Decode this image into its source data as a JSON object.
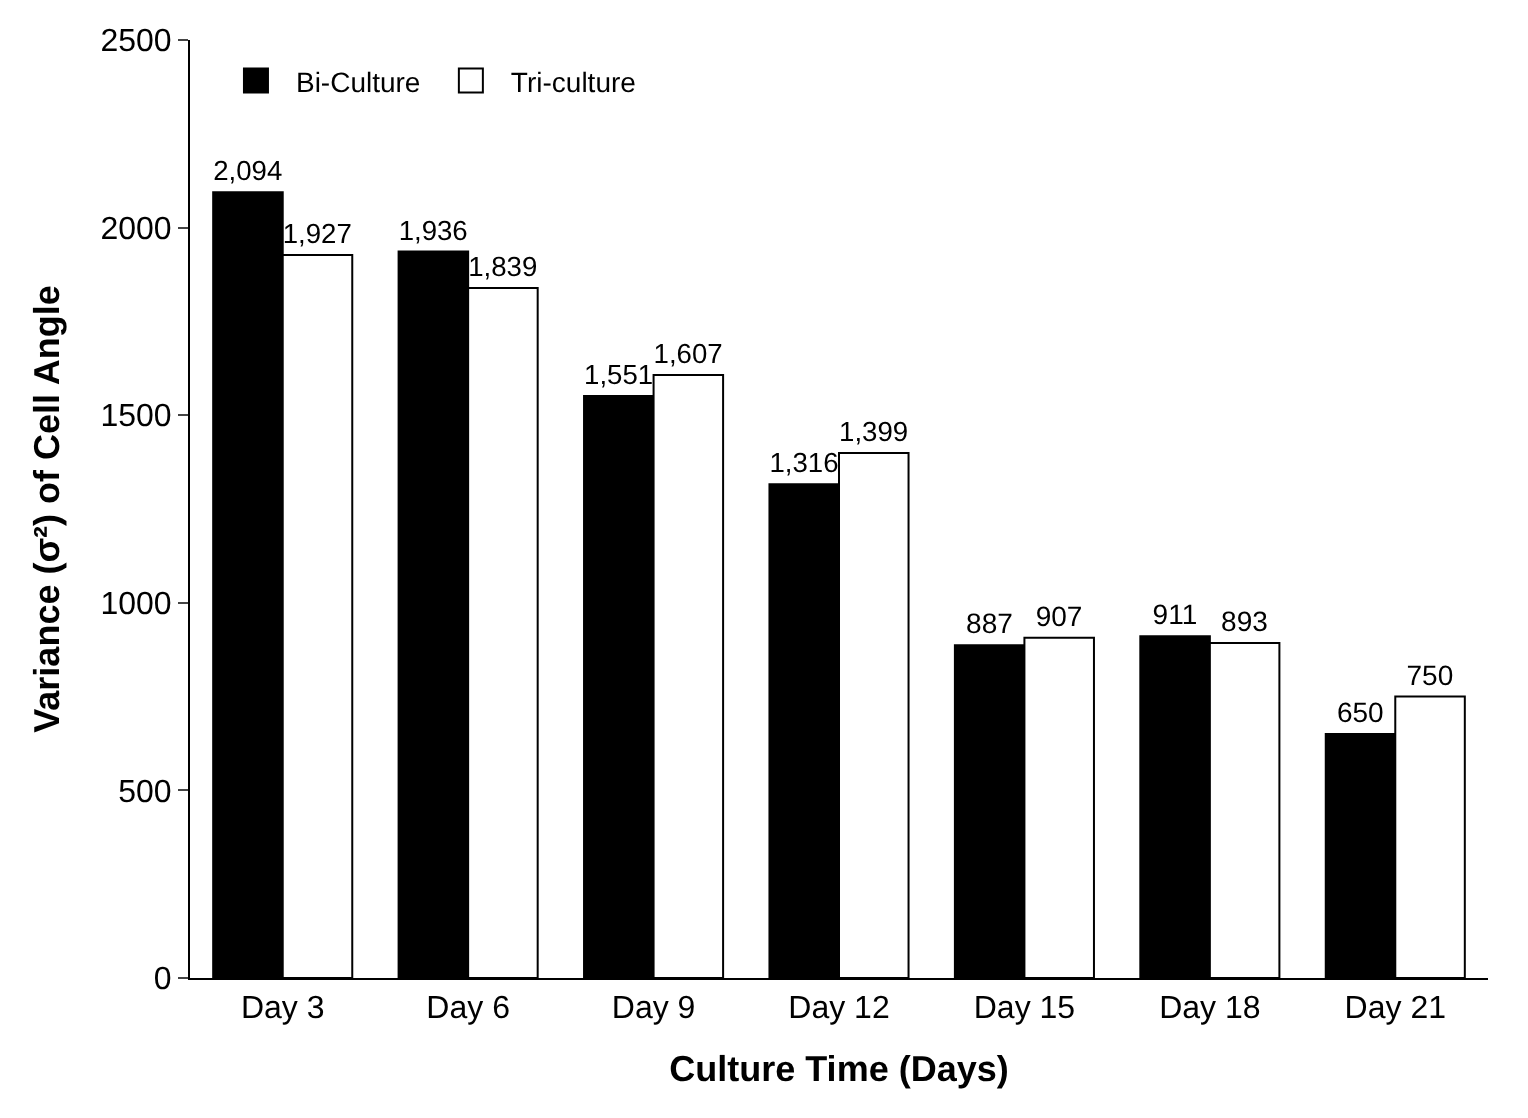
{
  "chart_data": {
    "type": "bar",
    "xlabel": "Culture Time (Days)",
    "ylabel": "Variance (σ²) of Cell Angle",
    "categories": [
      "Day 3",
      "Day 6",
      "Day 9",
      "Day 12",
      "Day 15",
      "Day 18",
      "Day 21"
    ],
    "series": [
      {
        "name": "Bi-Culture",
        "color": "#000000",
        "values": [
          2094,
          1936,
          1551,
          1316,
          887,
          911,
          650
        ],
        "value_labels": [
          "2,094",
          "1,936",
          "1,551",
          "1,316",
          "887",
          "911",
          "650"
        ]
      },
      {
        "name": "Tri-culture",
        "color": "#ffffff",
        "values": [
          1927,
          1839,
          1607,
          1399,
          907,
          893,
          750
        ],
        "value_labels": [
          "1,927",
          "1,839",
          "1,607",
          "1,399",
          "907",
          "893",
          "750"
        ]
      }
    ],
    "ylim": [
      0,
      2500
    ],
    "yticks": [
      0,
      500,
      1000,
      1500,
      2000,
      2500
    ],
    "grid": false,
    "legend": "top left"
  }
}
